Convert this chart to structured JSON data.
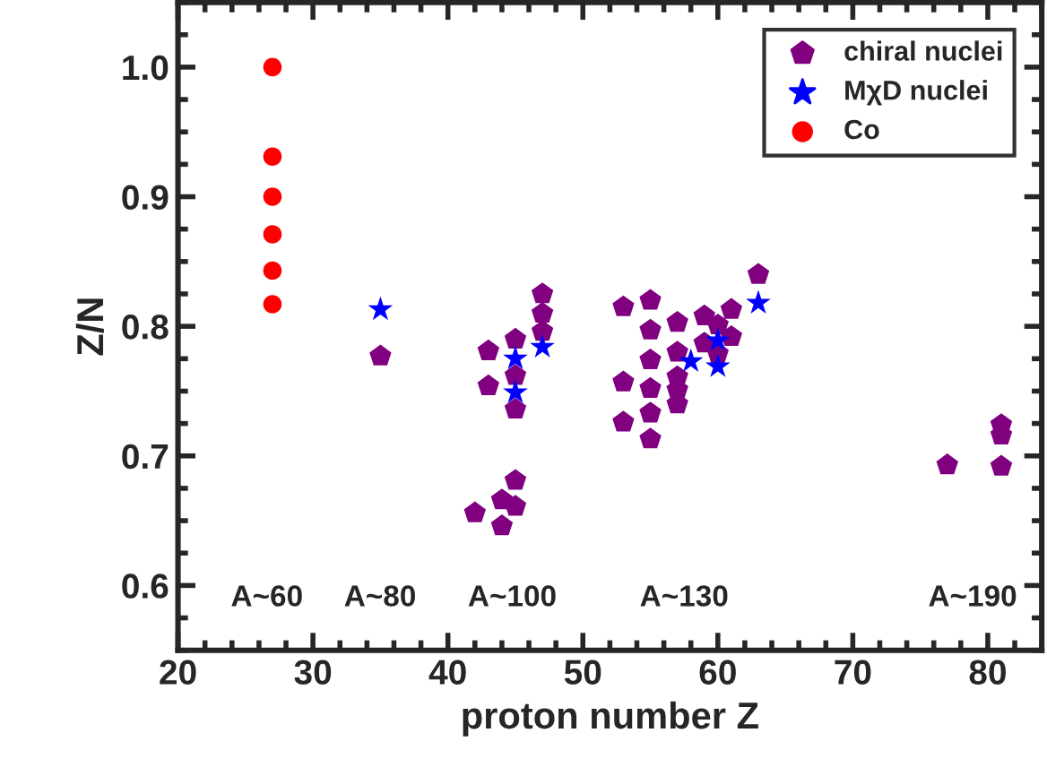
{
  "chart_data": {
    "type": "scatter",
    "xlabel": "proton number Z",
    "ylabel": "Z/N",
    "xlim": [
      20,
      84
    ],
    "ylim": [
      0.55,
      1.05
    ],
    "xticks": [
      20,
      30,
      40,
      50,
      60,
      70,
      80
    ],
    "yticks": [
      0.6,
      0.7,
      0.8,
      0.9,
      {
        "value": 1.0,
        "label": "1.0"
      }
    ],
    "grid": false,
    "legend": "top right",
    "series": [
      {
        "name": "chiral nuclei",
        "color": "#800080",
        "x": [
          35,
          43,
          43,
          45,
          45,
          45,
          45,
          45,
          47,
          47,
          47,
          42,
          44,
          44,
          53,
          53,
          53,
          55,
          55,
          55,
          55,
          55,
          55,
          57,
          57,
          57,
          57,
          57,
          59,
          59,
          60,
          60,
          61,
          61,
          63,
          77,
          81,
          81,
          81
        ],
        "values": [
          0.777,
          0.781,
          0.754,
          0.79,
          0.762,
          0.736,
          0.681,
          0.661,
          0.825,
          0.81,
          0.796,
          0.656,
          0.666,
          0.646,
          0.815,
          0.757,
          0.726,
          0.82,
          0.797,
          0.774,
          0.752,
          0.733,
          0.713,
          0.803,
          0.78,
          0.761,
          0.751,
          0.74,
          0.808,
          0.787,
          0.801,
          0.779,
          0.813,
          0.792,
          0.84,
          0.693,
          0.724,
          0.716,
          0.692
        ]
      },
      {
        "name": "MχD nuclei",
        "color": "#0000ff",
        "marker": "star",
        "x": [
          35,
          45,
          45,
          47,
          58,
          60,
          60,
          63
        ],
        "values": [
          0.813,
          0.775,
          0.749,
          0.784,
          0.773,
          0.789,
          0.769,
          0.818
        ]
      },
      {
        "name": "Co",
        "color": "#ff0000",
        "marker": "circle",
        "x": [
          27,
          27,
          27,
          27,
          27,
          27
        ],
        "values": [
          1.0,
          0.931,
          0.9,
          0.871,
          0.843,
          0.817
        ]
      }
    ],
    "annotations": [
      "A~60",
      "A~80",
      "A~100",
      "A~130",
      "A~190"
    ]
  }
}
